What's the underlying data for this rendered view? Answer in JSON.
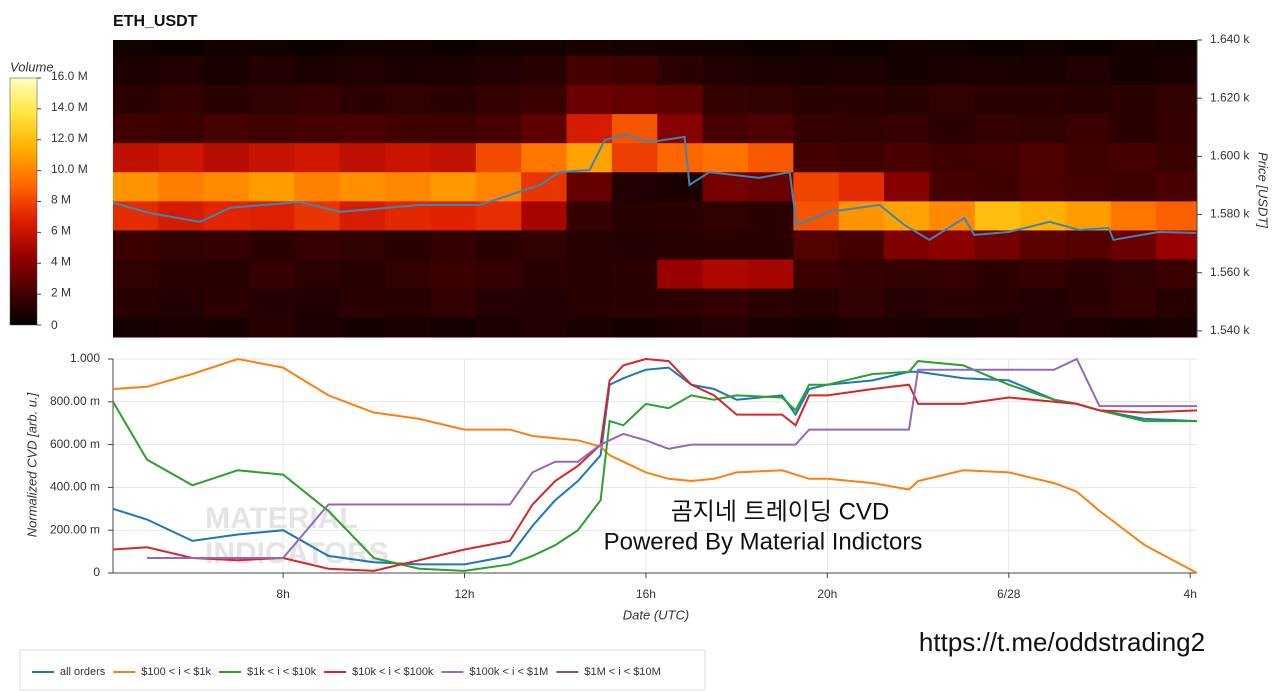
{
  "chart_data": [
    {
      "type": "heatmap",
      "title": "ETH_USDT",
      "y_label": "Price [USDT]",
      "xlim": [
        4.25,
        28.15
      ],
      "ylim": [
        1537.9,
        1640
      ],
      "yticks": [
        {
          "value": 1540,
          "label": "1.540 k"
        },
        {
          "value": 1560,
          "label": "1.560 k"
        },
        {
          "value": 1580,
          "label": "1.580 k"
        },
        {
          "value": 1600,
          "label": "1.600 k"
        },
        {
          "value": 1620,
          "label": "1.620 k"
        },
        {
          "value": 1640,
          "label": "1.640 k"
        }
      ],
      "x_bins": [
        4.25,
        5.25,
        6.25,
        7.25,
        8.25,
        9.25,
        10.25,
        11.25,
        12.25,
        13.25,
        14.25,
        15.25,
        16.25,
        17.25,
        18.25,
        19.25,
        20.25,
        21.25,
        22.25,
        23.25,
        24.25,
        25.25,
        26.25,
        27.25,
        28.15
      ],
      "y_bins": [
        1537.9,
        1544.7,
        1554.7,
        1564.7,
        1574.7,
        1584.7,
        1594.7,
        1604.7,
        1614.7,
        1624.7,
        1634.7,
        1640
      ],
      "z": [
        [
          0.6,
          0.8,
          0.7,
          1.2,
          0.9,
          0.7,
          0.8,
          0.6,
          0.9,
          1.0,
          0.8,
          0.7,
          0.9,
          1.1,
          0.8,
          0.7,
          0.9,
          0.8,
          0.6,
          0.8,
          1.0,
          0.9,
          0.7,
          0.8
        ],
        [
          1.2,
          1.0,
          1.4,
          1.1,
          1.0,
          1.3,
          1.2,
          1.5,
          1.1,
          1.0,
          1.2,
          1.3,
          1.4,
          1.6,
          1.3,
          1.2,
          1.5,
          1.1,
          1.4,
          1.2,
          1.0,
          1.3,
          1.6,
          1.2
        ],
        [
          1.5,
          1.3,
          1.2,
          1.6,
          1.4,
          1.2,
          1.5,
          1.8,
          1.6,
          1.4,
          1.2,
          1.3,
          4.5,
          5.2,
          5.0,
          1.8,
          1.6,
          1.5,
          1.7,
          1.4,
          1.6,
          1.3,
          1.5,
          1.8
        ],
        [
          1.8,
          1.5,
          1.6,
          1.4,
          1.7,
          1.5,
          1.3,
          1.6,
          1.4,
          1.5,
          1.2,
          1.1,
          1.2,
          1.4,
          1.3,
          2.5,
          2.2,
          3.8,
          4.2,
          3.5,
          2.8,
          2.6,
          3.2,
          4.6
        ],
        [
          7.2,
          6.5,
          7.0,
          6.8,
          7.5,
          6.6,
          7.1,
          6.9,
          7.3,
          5.0,
          1.6,
          1.2,
          1.3,
          1.5,
          1.4,
          8.5,
          10.5,
          11.0,
          10.2,
          12.0,
          11.5,
          10.8,
          9.5,
          8.8
        ],
        [
          10.5,
          9.8,
          10.2,
          10.8,
          9.9,
          10.4,
          10.1,
          10.6,
          10.0,
          7.5,
          3.0,
          1.0,
          0.8,
          3.5,
          3.2,
          8.0,
          7.2,
          4.0,
          2.2,
          2.0,
          2.4,
          2.1,
          1.9,
          2.3
        ],
        [
          5.8,
          6.2,
          5.5,
          6.0,
          6.3,
          5.7,
          6.1,
          5.9,
          8.2,
          9.5,
          11.0,
          7.8,
          9.0,
          9.4,
          8.6,
          2.2,
          2.0,
          2.3,
          1.9,
          2.1,
          2.4,
          2.0,
          2.2,
          1.8
        ],
        [
          2.0,
          1.8,
          2.2,
          1.9,
          2.1,
          2.3,
          2.0,
          1.9,
          2.2,
          2.8,
          6.5,
          8.5,
          4.0,
          2.2,
          2.4,
          1.6,
          1.5,
          1.7,
          1.4,
          1.6,
          1.5,
          1.8,
          1.4,
          1.6
        ],
        [
          1.4,
          1.6,
          1.3,
          1.5,
          1.7,
          1.4,
          1.5,
          1.3,
          1.6,
          1.8,
          3.2,
          3.0,
          2.8,
          1.6,
          1.5,
          1.3,
          1.4,
          1.2,
          1.5,
          1.3,
          1.4,
          1.2,
          1.3,
          1.5
        ],
        [
          0.9,
          1.0,
          0.8,
          1.1,
          0.9,
          1.0,
          0.8,
          0.9,
          1.0,
          1.2,
          2.2,
          2.0,
          1.4,
          1.0,
          0.9,
          0.8,
          0.9,
          0.7,
          0.8,
          0.9,
          0.8,
          1.0,
          0.7,
          0.8
        ],
        [
          0.5,
          0.4,
          0.6,
          0.5,
          0.4,
          0.5,
          0.6,
          0.4,
          0.5,
          0.6,
          0.8,
          0.7,
          0.6,
          0.5,
          0.4,
          0.5,
          0.4,
          0.6,
          0.5,
          0.4,
          0.5,
          0.4,
          0.6,
          0.5
        ]
      ],
      "colorbar": {
        "title": "Volume",
        "lim": [
          0,
          16
        ],
        "ticks": [
          0,
          {
            "value": 2,
            "label": "2 M"
          },
          {
            "value": 4,
            "label": "4 M"
          },
          {
            "value": 6,
            "label": "6 M"
          },
          {
            "value": 8,
            "label": "8 M"
          },
          {
            "value": 10,
            "label": "10.0 M"
          },
          {
            "value": 12,
            "label": "12.0 M"
          },
          {
            "value": 14,
            "label": "14.0 M"
          },
          {
            "value": 16,
            "label": "16.0 M"
          }
        ],
        "colors": [
          "#000000",
          "#4a0000",
          "#9a0000",
          "#e02000",
          "#ff6a00",
          "#ffb000",
          "#ffe640",
          "#ffffc0"
        ]
      },
      "price_line": {
        "color": "#3d86b8",
        "x": [
          4.26,
          5.07,
          6.17,
          6.83,
          8.37,
          9.26,
          11.02,
          12.34,
          13.0,
          13.66,
          14.1,
          14.76,
          15.09,
          15.53,
          16.08,
          16.85,
          16.96,
          17.4,
          18.5,
          19.17,
          19.32,
          20.05,
          21.15,
          21.7,
          22.25,
          23.02,
          23.24,
          24.0,
          24.9,
          25.55,
          26.2,
          26.31,
          27.3,
          28.13
        ],
        "values": [
          1584.0,
          1580.5,
          1577.5,
          1582.3,
          1584.3,
          1580.9,
          1583.3,
          1583.3,
          1586.7,
          1590.2,
          1594.6,
          1595.3,
          1605.6,
          1607.4,
          1604.9,
          1606.7,
          1590.2,
          1594.6,
          1592.6,
          1594.6,
          1576.4,
          1580.9,
          1583.3,
          1576.4,
          1571.3,
          1578.8,
          1573.0,
          1574.0,
          1577.5,
          1574.7,
          1575.4,
          1571.3,
          1574.0,
          1573.7
        ]
      }
    },
    {
      "type": "line",
      "x_label": "Date (UTC)",
      "y_label": "Normalized CVD [arb. u.]",
      "xlim": [
        4.25,
        28.15
      ],
      "ylim": [
        0,
        1
      ],
      "grid": true,
      "legend": "bottom-left",
      "xticks": [
        {
          "value": 8,
          "label": "8h"
        },
        {
          "value": 12,
          "label": "12h"
        },
        {
          "value": 16,
          "label": "16h"
        },
        {
          "value": 20,
          "label": "20h"
        },
        {
          "value": 24,
          "label": "6/28"
        },
        {
          "value": 28,
          "label": "4h"
        }
      ],
      "yticks": [
        0,
        {
          "value": 0.2,
          "label": "200.00 m"
        },
        {
          "value": 0.4,
          "label": "400.00 m"
        },
        {
          "value": 0.6,
          "label": "600.00 m"
        },
        {
          "value": 0.8,
          "label": "800.00 m"
        },
        {
          "value": 1,
          "label": "1.000"
        }
      ],
      "x": [
        4.25,
        5,
        6,
        7,
        8,
        9,
        10,
        11,
        12,
        13,
        13.5,
        14,
        14.5,
        15,
        15.2,
        15.5,
        16,
        16.5,
        17,
        17.5,
        18,
        19,
        19.3,
        19.6,
        20,
        21,
        21.8,
        22,
        23,
        24,
        25,
        25.5,
        26,
        27,
        28.15
      ],
      "series": [
        {
          "name": "all orders",
          "color": "#1f77b4",
          "values": [
            0.3,
            0.25,
            0.15,
            0.18,
            0.2,
            0.08,
            0.05,
            0.04,
            0.04,
            0.08,
            0.22,
            0.34,
            0.43,
            0.55,
            0.88,
            0.91,
            0.95,
            0.96,
            0.88,
            0.86,
            0.81,
            0.83,
            0.74,
            0.86,
            0.88,
            0.9,
            0.94,
            0.94,
            0.91,
            0.9,
            0.81,
            0.79,
            0.76,
            0.72,
            0.71
          ]
        },
        {
          "name": "$100 < i < $1k",
          "color": "#ff7f0e",
          "values": [
            0.86,
            0.87,
            0.93,
            1.0,
            0.96,
            0.83,
            0.75,
            0.72,
            0.67,
            0.67,
            0.64,
            0.63,
            0.62,
            0.59,
            0.55,
            0.52,
            0.47,
            0.44,
            0.43,
            0.44,
            0.47,
            0.48,
            0.46,
            0.44,
            0.44,
            0.42,
            0.39,
            0.43,
            0.48,
            0.47,
            0.42,
            0.38,
            0.29,
            0.13,
            0.0
          ]
        },
        {
          "name": "$1k < i < $10k",
          "color": "#2ca02c",
          "values": [
            0.8,
            0.53,
            0.41,
            0.48,
            0.46,
            0.29,
            0.07,
            0.02,
            0.01,
            0.04,
            0.08,
            0.13,
            0.2,
            0.34,
            0.71,
            0.69,
            0.79,
            0.77,
            0.83,
            0.81,
            0.83,
            0.82,
            0.76,
            0.88,
            0.88,
            0.93,
            0.94,
            0.99,
            0.97,
            0.88,
            0.81,
            0.79,
            0.76,
            0.71,
            0.71
          ]
        },
        {
          "name": "$10k < i < $100k",
          "color": "#d62728",
          "values": [
            0.11,
            0.12,
            0.07,
            0.06,
            0.07,
            0.02,
            0.01,
            0.06,
            0.11,
            0.15,
            0.32,
            0.43,
            0.5,
            0.6,
            0.9,
            0.97,
            1.0,
            0.99,
            0.88,
            0.83,
            0.74,
            0.74,
            0.69,
            0.83,
            0.83,
            0.86,
            0.88,
            0.79,
            0.79,
            0.82,
            0.8,
            0.79,
            0.76,
            0.75,
            0.76
          ]
        },
        {
          "name": "$100k < i < $1M",
          "color": "#9467bd",
          "values": [
            null,
            0.07,
            0.07,
            0.07,
            0.07,
            0.32,
            0.32,
            0.32,
            0.32,
            0.32,
            0.47,
            0.52,
            0.52,
            0.6,
            0.62,
            0.65,
            0.62,
            0.58,
            0.6,
            0.6,
            0.6,
            0.6,
            0.6,
            0.67,
            0.67,
            0.67,
            0.67,
            0.95,
            0.95,
            0.95,
            0.95,
            1.0,
            0.78,
            0.78,
            0.78
          ]
        },
        {
          "name": "$1M < i < $10M",
          "color": "#8c564b",
          "values": [
            null,
            null,
            null,
            null,
            null,
            null,
            null,
            null,
            null,
            null,
            null,
            null,
            null,
            null,
            null,
            null,
            null,
            null,
            null,
            null,
            null,
            null,
            null,
            null,
            null,
            null,
            null,
            null,
            null,
            null,
            null,
            null,
            null,
            null,
            null
          ]
        }
      ],
      "annotations": [
        "곰지네 트레이딩 CVD",
        "Powered By Material Indictors"
      ],
      "watermark": [
        "MATERIAL",
        "INDICATORS"
      ]
    }
  ],
  "footer": {
    "link": "https://t.me/oddstrading2"
  }
}
